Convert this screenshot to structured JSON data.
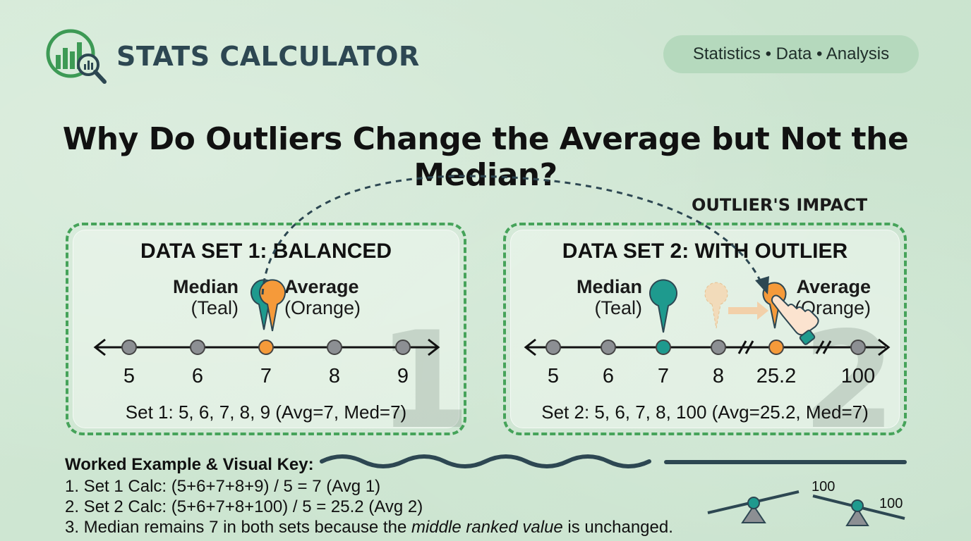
{
  "header": {
    "brand": "STATS CALCULATOR",
    "tagline": "Statistics • Data • Analysis",
    "logo_icon": "chart-magnifier-icon"
  },
  "title": "Why Do Outliers Change the Average but Not the Median?",
  "impact_label": "OUTLIER'S IMPACT",
  "colors": {
    "teal": "#1e9a8e",
    "orange": "#f59a3a",
    "grey_point": "#8c8f93",
    "green_border": "#46a35a",
    "navy": "#2d4752"
  },
  "set1": {
    "title": "DATA SET 1: BALANCED",
    "median_label": "Median",
    "median_sub": "(Teal)",
    "average_label": "Average",
    "average_sub": "(Orange)",
    "ticks": [
      "5",
      "6",
      "7",
      "8",
      "9"
    ],
    "caption": "Set 1: 5, 6, 7, 8, 9 (Avg=7, Med=7)",
    "big_number": "1"
  },
  "set2": {
    "title": "DATA SET 2: WITH OUTLIER",
    "median_label": "Median",
    "median_sub": "(Teal)",
    "average_label": "Average",
    "average_sub": "(Orange)",
    "ticks": [
      "5",
      "6",
      "7",
      "8",
      "25.2",
      "100"
    ],
    "caption": "Set 2: 5, 6, 7, 8, 100 (Avg=25.2, Med=7)",
    "big_number": "2"
  },
  "worked": {
    "heading": "Worked Example & Visual Key:",
    "step1": "1. Set 1 Calc: (5+6+7+8+9) / 5 = 7 (Avg 1)",
    "step2": "2. Set 2 Calc: (5+6+7+8+100) / 5 = 25.2 (Avg 2)",
    "step3_pre": "3. Median remains 7 in both sets because the ",
    "step3_em": "middle ranked value",
    "step3_post": " is unchanged."
  },
  "key": {
    "seesaw_label_a": "100",
    "seesaw_label_b": "100"
  }
}
